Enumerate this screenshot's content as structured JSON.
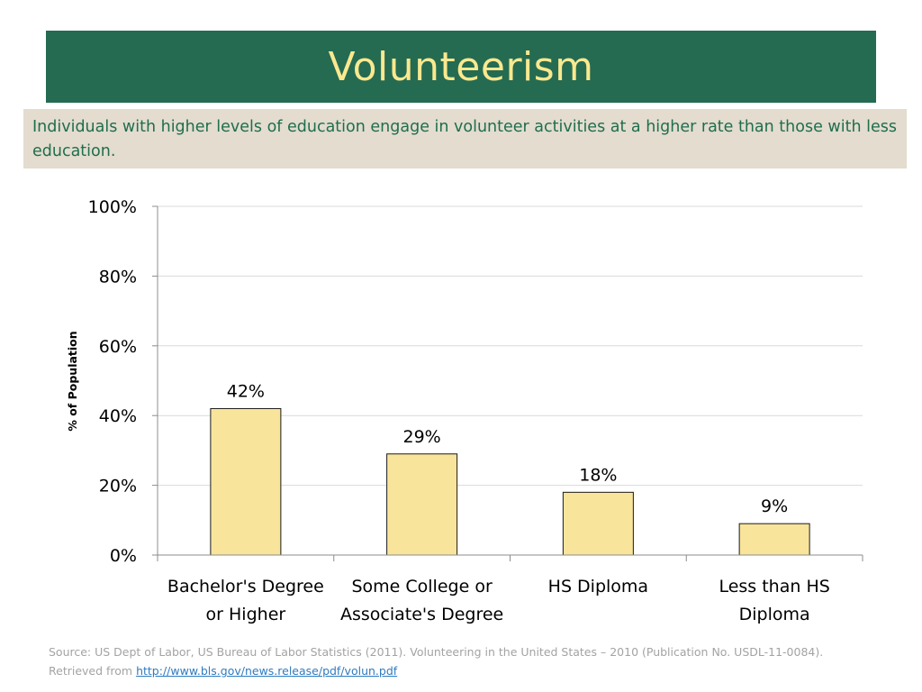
{
  "slide": {
    "title": "Volunteerism",
    "subtitle": "Individuals with higher levels of education engage in volunteer activities at a higher rate than those with less education.",
    "source_text": "Source: US Dept of Labor, US Bureau of Labor Statistics (2011).  Volunteering in the United States – 2010 (Publication No. USDL-11-0084). Retrieved from ",
    "source_link": "http://www.bls.gov/news.release/pdf/volun.pdf"
  },
  "colors": {
    "banner": "#246b52",
    "title": "#fbe88f",
    "subtitle_bg": "#e3dccf",
    "subtitle_text": "#1f6e4d",
    "bar_fill": "#f9e49b",
    "bar_stroke": "#1a1a1a"
  },
  "chart_data": {
    "type": "bar",
    "categories": [
      [
        "Bachelor's Degree",
        "or Higher"
      ],
      [
        "Some College or",
        "Associate's Degree"
      ],
      [
        "HS Diploma"
      ],
      [
        "Less than HS",
        "Diploma"
      ]
    ],
    "values": [
      42,
      29,
      18,
      9
    ],
    "data_labels": [
      "42%",
      "29%",
      "18%",
      "9%"
    ],
    "ylabel": "% of Population",
    "ylim": [
      0,
      100
    ],
    "yticks": [
      0,
      20,
      40,
      60,
      80,
      100
    ],
    "ytick_labels": [
      "0%",
      "20%",
      "40%",
      "60%",
      "80%",
      "100%"
    ],
    "grid": true,
    "legend": "none"
  }
}
